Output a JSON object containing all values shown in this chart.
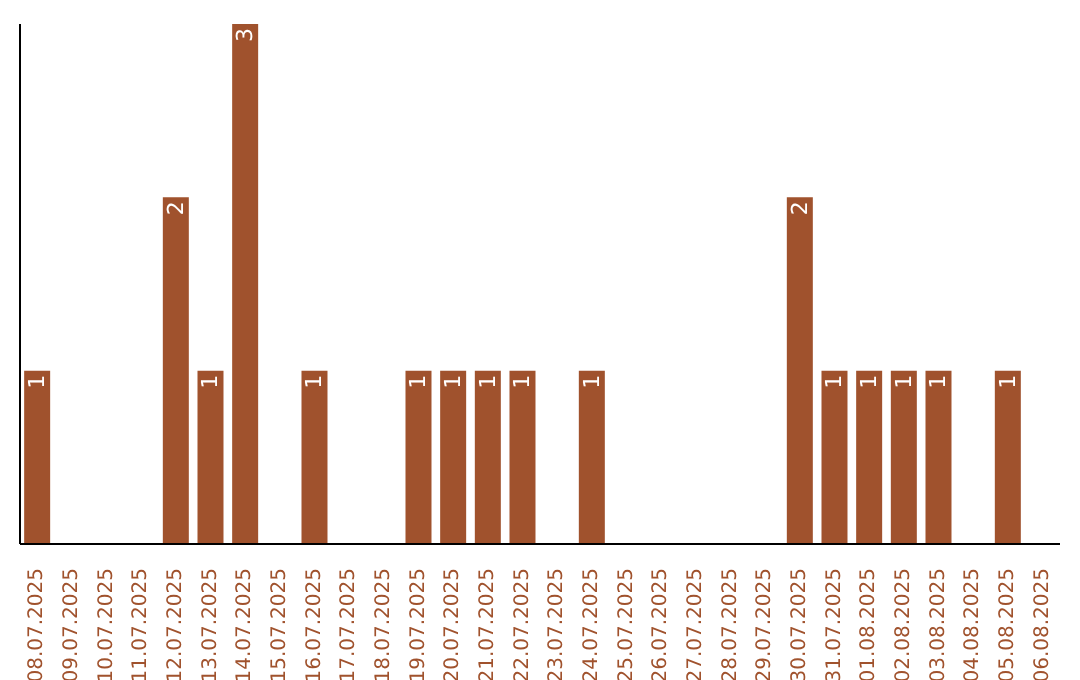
{
  "chart_data": {
    "type": "bar",
    "categories": [
      "08.07.2025",
      "09.07.2025",
      "10.07.2025",
      "11.07.2025",
      "12.07.2025",
      "13.07.2025",
      "14.07.2025",
      "15.07.2025",
      "16.07.2025",
      "17.07.2025",
      "18.07.2025",
      "19.07.2025",
      "20.07.2025",
      "21.07.2025",
      "22.07.2025",
      "23.07.2025",
      "24.07.2025",
      "25.07.2025",
      "26.07.2025",
      "27.07.2025",
      "28.07.2025",
      "29.07.2025",
      "30.07.2025",
      "31.07.2025",
      "01.08.2025",
      "02.08.2025",
      "03.08.2025",
      "04.08.2025",
      "05.08.2025",
      "06.08.2025"
    ],
    "values": [
      1,
      0,
      0,
      0,
      2,
      1,
      3,
      0,
      1,
      0,
      0,
      1,
      1,
      1,
      1,
      0,
      1,
      0,
      0,
      0,
      0,
      0,
      2,
      1,
      1,
      1,
      1,
      0,
      1,
      0
    ],
    "value_labels": [
      "1",
      null,
      null,
      null,
      "2",
      "1",
      "3",
      null,
      "1",
      null,
      null,
      "1",
      "1",
      "1",
      "1",
      null,
      "1",
      null,
      null,
      null,
      null,
      null,
      "2",
      "1",
      "1",
      "1",
      "1",
      null,
      "1",
      null
    ],
    "color": "#a0522d",
    "grid": false,
    "legend": false,
    "tick_labels": "x"
  }
}
